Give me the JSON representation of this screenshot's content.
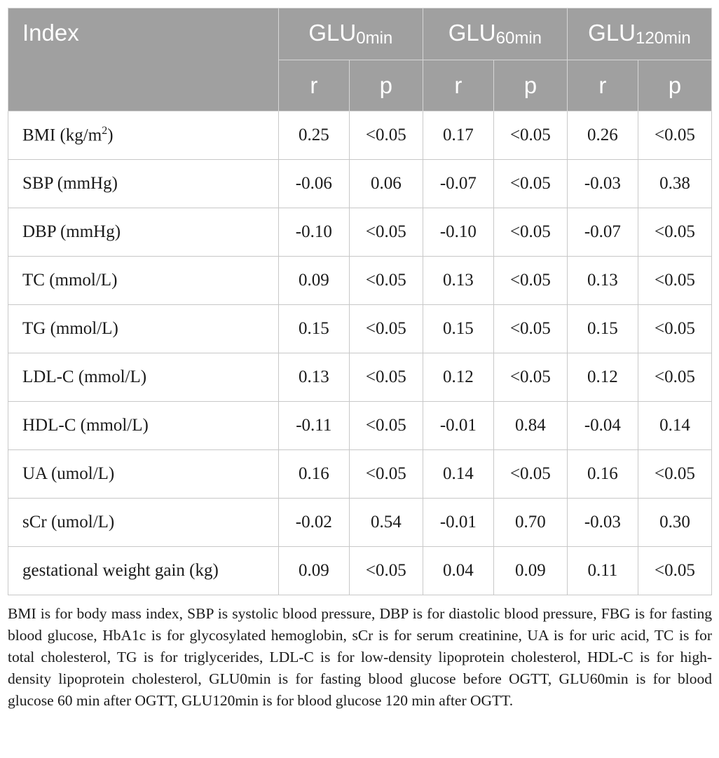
{
  "table": {
    "header": {
      "index_label": "Index",
      "groups": [
        {
          "base": "GLU",
          "sub": "0min"
        },
        {
          "base": "GLU",
          "sub": "60min"
        },
        {
          "base": "GLU",
          "sub": "120min"
        }
      ],
      "sub_labels": [
        "r",
        "p",
        "r",
        "p",
        "r",
        "p"
      ]
    },
    "rows": [
      {
        "label": "BMI (kg/m",
        "label_sup": "2",
        "label_end": ")",
        "cells": [
          "0.25",
          "<0.05",
          "0.17",
          "<0.05",
          "0.26",
          "<0.05"
        ]
      },
      {
        "label": "SBP (mmHg)",
        "cells": [
          "-0.06",
          "0.06",
          "-0.07",
          "<0.05",
          "-0.03",
          "0.38"
        ]
      },
      {
        "label": "DBP (mmHg)",
        "cells": [
          "-0.10",
          "<0.05",
          "-0.10",
          "<0.05",
          "-0.07",
          "<0.05"
        ]
      },
      {
        "label": "TC (mmol/L)",
        "cells": [
          "0.09",
          "<0.05",
          "0.13",
          "<0.05",
          "0.13",
          "<0.05"
        ]
      },
      {
        "label": "TG (mmol/L)",
        "cells": [
          "0.15",
          "<0.05",
          "0.15",
          "<0.05",
          "0.15",
          "<0.05"
        ]
      },
      {
        "label": "LDL-C (mmol/L)",
        "cells": [
          "0.13",
          "<0.05",
          "0.12",
          "<0.05",
          "0.12",
          "<0.05"
        ]
      },
      {
        "label": "HDL-C (mmol/L)",
        "cells": [
          "-0.11",
          "<0.05",
          "-0.01",
          "0.84",
          "-0.04",
          "0.14"
        ]
      },
      {
        "label": "UA (umol/L)",
        "cells": [
          "0.16",
          "<0.05",
          "0.14",
          "<0.05",
          "0.16",
          "<0.05"
        ]
      },
      {
        "label": "sCr (umol/L)",
        "cells": [
          "-0.02",
          "0.54",
          "-0.01",
          "0.70",
          "-0.03",
          "0.30"
        ]
      },
      {
        "label": "gestational weight gain (kg)",
        "cells": [
          "0.09",
          "<0.05",
          "0.04",
          "0.09",
          "0.11",
          "<0.05"
        ]
      }
    ]
  },
  "footnote": "BMI is for body mass index, SBP is systolic blood pressure, DBP is for diastolic blood pressure, FBG is for fasting blood glucose, HbA1c is for glycosylated hemoglobin, sCr is for serum creatinine, UA is for uric acid, TC is for total cholesterol, TG is for triglycerides, LDL-C is for low-density lipoprotein cholesterol, HDL-C is for high-density lipoprotein cholesterol, GLU0min is for fasting blood glucose before OGTT, GLU60min is for blood glucose 60 min after OGTT, GLU120min is for blood glucose 120 min after OGTT.",
  "colors": {
    "header_bg": "#a0a0a0",
    "header_text": "#ffffff",
    "grid": "#c8c8c8"
  }
}
